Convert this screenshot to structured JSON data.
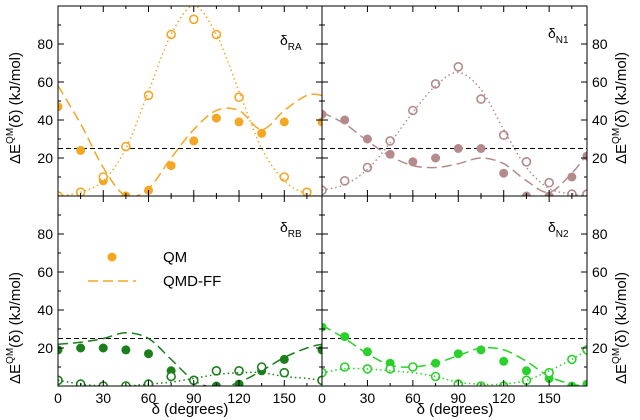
{
  "chart_data": [
    {
      "type": "scatter",
      "panel_label": "δ",
      "panel_label_sub": "RA",
      "color": "#F5A623",
      "xlim": [
        0,
        175
      ],
      "ylim": [
        0,
        100
      ],
      "xticks": [
        0,
        30,
        60,
        90,
        120,
        150
      ],
      "yticks": [
        20,
        40,
        60,
        80
      ],
      "reference_line": 25,
      "series": [
        {
          "name": "QM",
          "style": "filled-circle",
          "x": [
            0,
            15,
            30,
            45,
            60,
            75,
            90,
            105,
            120,
            135,
            150,
            175
          ],
          "y": [
            47,
            24,
            8,
            0,
            3,
            16,
            29,
            41,
            39,
            33,
            39,
            39
          ]
        },
        {
          "style": "dashed-line",
          "x": [
            0,
            15,
            30,
            45,
            60,
            75,
            90,
            105,
            120,
            135,
            150,
            165,
            175
          ],
          "y": [
            58,
            38,
            15,
            0,
            4,
            20,
            35,
            45,
            45,
            35,
            45,
            53,
            53
          ]
        },
        {
          "style": "open-circle",
          "x": [
            0,
            15,
            30,
            45,
            60,
            75,
            90,
            105,
            120,
            150,
            165
          ],
          "y": [
            0,
            2,
            10,
            26,
            53,
            85,
            93,
            85,
            52,
            10,
            2
          ]
        },
        {
          "style": "dotted-line",
          "x": [
            0,
            15,
            30,
            45,
            60,
            75,
            90,
            105,
            120,
            135,
            150,
            165,
            175
          ],
          "y": [
            0,
            2,
            8,
            25,
            55,
            85,
            100,
            85,
            55,
            25,
            8,
            1,
            0
          ]
        }
      ]
    },
    {
      "type": "scatter",
      "panel_label": "δ",
      "panel_label_sub": "N1",
      "color": "#B48A8C",
      "xlim": [
        0,
        175
      ],
      "ylim": [
        0,
        100
      ],
      "xticks": [
        0,
        30,
        60,
        90,
        120,
        150
      ],
      "yticks": [
        20,
        40,
        60,
        80
      ],
      "reference_line": 25,
      "series": [
        {
          "style": "filled-circle",
          "x": [
            0,
            15,
            30,
            45,
            60,
            75,
            90,
            105,
            120,
            135,
            150,
            165,
            175
          ],
          "y": [
            43,
            40,
            30,
            22,
            18,
            20,
            25,
            25,
            12,
            0,
            0,
            10,
            21
          ]
        },
        {
          "style": "dashed-line",
          "x": [
            0,
            15,
            30,
            45,
            60,
            75,
            90,
            105,
            120,
            135,
            150,
            165,
            175
          ],
          "y": [
            44,
            38,
            29,
            21,
            16,
            15,
            17,
            20,
            17,
            8,
            2,
            12,
            22
          ]
        },
        {
          "style": "open-circle",
          "x": [
            0,
            15,
            30,
            45,
            60,
            75,
            90,
            105,
            120,
            135,
            150,
            165,
            175
          ],
          "y": [
            3,
            8,
            15,
            29,
            45,
            59,
            68,
            51,
            32,
            18,
            7,
            1,
            1
          ]
        },
        {
          "style": "dotted-line",
          "x": [
            0,
            15,
            30,
            45,
            60,
            75,
            90,
            105,
            120,
            135,
            150,
            165,
            175
          ],
          "y": [
            3,
            6,
            14,
            28,
            44,
            58,
            65,
            56,
            35,
            15,
            4,
            1,
            0
          ]
        }
      ]
    },
    {
      "type": "scatter",
      "panel_label": "δ",
      "panel_label_sub": "RB",
      "color": "#1B7F1B",
      "xlim": [
        0,
        175
      ],
      "ylim": [
        0,
        100
      ],
      "xticks": [
        0,
        30,
        60,
        90,
        120,
        150
      ],
      "yticks": [
        20,
        40,
        60,
        80
      ],
      "reference_line": 25,
      "series": [
        {
          "style": "filled-circle",
          "x": [
            0,
            15,
            30,
            45,
            60,
            75,
            90,
            105,
            120,
            135,
            150,
            175
          ],
          "y": [
            19,
            20,
            20,
            19,
            17,
            8,
            3,
            0,
            1,
            8,
            14,
            19
          ]
        },
        {
          "style": "dashed-line",
          "x": [
            0,
            15,
            30,
            45,
            60,
            75,
            90,
            105,
            120,
            135,
            150,
            165,
            175
          ],
          "y": [
            22,
            23,
            25,
            28,
            25,
            14,
            3,
            -1,
            2,
            8,
            15,
            20,
            22
          ]
        },
        {
          "style": "open-circle",
          "x": [
            0,
            15,
            30,
            45,
            60,
            75,
            90,
            105,
            120,
            135,
            150,
            175
          ],
          "y": [
            3,
            1,
            0,
            0,
            1,
            5,
            3,
            8,
            8,
            10,
            7,
            3
          ]
        },
        {
          "style": "dotted-line",
          "x": [
            0,
            15,
            30,
            45,
            60,
            75,
            90,
            105,
            120,
            135,
            150,
            165,
            175
          ],
          "y": [
            3,
            1,
            0,
            0,
            1,
            2,
            4,
            6,
            7,
            7,
            5,
            4,
            3
          ]
        }
      ]
    },
    {
      "type": "scatter",
      "panel_label": "δ",
      "panel_label_sub": "N2",
      "color": "#2BD12B",
      "xlim": [
        0,
        175
      ],
      "ylim": [
        0,
        100
      ],
      "xticks": [
        0,
        30,
        60,
        90,
        120,
        150
      ],
      "yticks": [
        20,
        40,
        60,
        80
      ],
      "reference_line": 25,
      "series": [
        {
          "style": "filled-circle",
          "x": [
            0,
            15,
            30,
            45,
            60,
            75,
            90,
            105,
            120,
            135,
            150,
            165,
            175
          ],
          "y": [
            31,
            26,
            18,
            12,
            10,
            12,
            17,
            19,
            13,
            8,
            4,
            0,
            1
          ]
        },
        {
          "style": "dashed-line",
          "x": [
            0,
            15,
            30,
            45,
            60,
            75,
            90,
            105,
            120,
            135,
            150,
            165,
            175
          ],
          "y": [
            32,
            25,
            17,
            11,
            10,
            12,
            16,
            20,
            19,
            13,
            5,
            1,
            0
          ]
        },
        {
          "style": "open-circle",
          "x": [
            0,
            15,
            30,
            45,
            60,
            75,
            90,
            105,
            120,
            135,
            150,
            165,
            175
          ],
          "y": [
            7,
            10,
            9,
            9,
            10,
            5,
            1,
            0,
            0,
            3,
            7,
            14,
            19
          ]
        },
        {
          "style": "dotted-line",
          "x": [
            0,
            15,
            30,
            45,
            60,
            75,
            90,
            105,
            120,
            135,
            150,
            165,
            175
          ],
          "y": [
            7,
            9,
            9,
            8,
            7,
            5,
            2,
            1,
            1,
            3,
            8,
            14,
            19
          ]
        }
      ]
    }
  ],
  "axes": {
    "xlabel": "δ (degrees)",
    "ylabel_prefix": "ΔE",
    "ylabel_sup": "QM",
    "ylabel_suffix": "(δ) (kJ/mol)"
  },
  "legend": {
    "position": "upper-left of bottom-left panel",
    "entries": [
      {
        "label": "QM",
        "style": "filled-circle"
      },
      {
        "label": "QMD-FF",
        "style": "dashed-line"
      }
    ]
  }
}
